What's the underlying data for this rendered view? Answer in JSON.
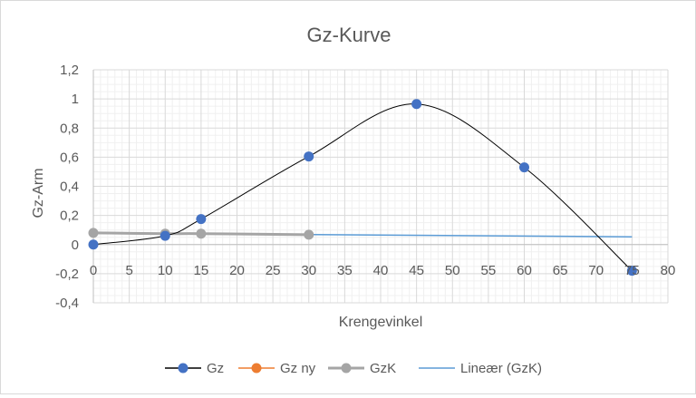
{
  "chart_data": {
    "type": "scatter",
    "title": "Gz-Kurve",
    "xlabel": "Krengevinkel",
    "ylabel": "Gz-Arm",
    "xlim": [
      0,
      80
    ],
    "ylim": [
      -0.4,
      1.2
    ],
    "x_ticks": [
      "0",
      "5",
      "10",
      "15",
      "20",
      "25",
      "30",
      "35",
      "40",
      "45",
      "50",
      "55",
      "60",
      "65",
      "70",
      "75",
      "80"
    ],
    "y_ticks": [
      "1,2",
      "1",
      "0,8",
      "0,6",
      "0,4",
      "0,2",
      "0",
      "-0,2",
      "-0,4"
    ],
    "grid": true,
    "legend_position": "bottom",
    "series": [
      {
        "name": "Gz",
        "color": "#4472c4",
        "line_color": "#000000",
        "marker": "circle",
        "smooth": true,
        "x": [
          0,
          10,
          15,
          30,
          45,
          60,
          75
        ],
        "y": [
          0,
          0.06,
          0.175,
          0.605,
          0.965,
          0.53,
          -0.18
        ]
      },
      {
        "name": "Gz ny",
        "color": "#ed7d31",
        "marker": "circle",
        "x": [],
        "y": []
      },
      {
        "name": "GzK",
        "color": "#a5a5a5",
        "marker": "circle",
        "x": [
          0,
          10,
          15,
          30
        ],
        "y": [
          0.08,
          0.075,
          0.075,
          0.068
        ]
      },
      {
        "name": "Lineær (GzK)",
        "color": "#5b9bd5",
        "type": "trendline",
        "x": [
          0,
          75
        ],
        "y": [
          0.079,
          0.053
        ]
      }
    ]
  }
}
